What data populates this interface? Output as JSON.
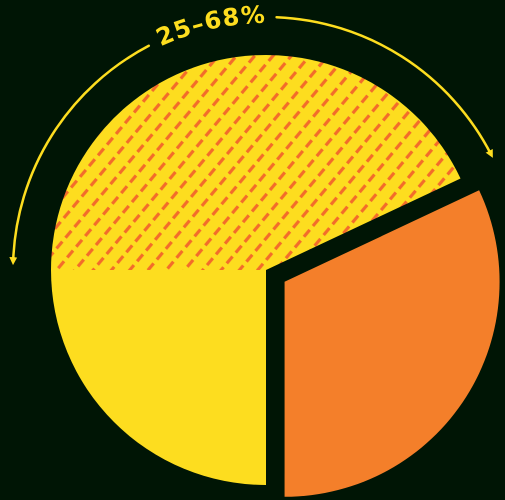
{
  "colors": {
    "background": "#001505",
    "yellow": "#FDDD1F",
    "orange": "#F47F2A",
    "hatch": "#F36C2A",
    "arrow": "#FDDD1F"
  },
  "chart_data": {
    "type": "pie",
    "title": "",
    "slices": [
      {
        "label": "",
        "value": 25,
        "color": "#FDDD1F",
        "pattern": "solid"
      },
      {
        "label": "",
        "value": 43,
        "color": "#FDDD1F",
        "pattern": "hatched"
      },
      {
        "label": "",
        "value": 32,
        "color": "#F47F2A",
        "pattern": "solid",
        "exploded": true
      }
    ],
    "annotations": [
      {
        "text": "25–68%",
        "spans_slice": 1,
        "style": "curved-arrow-both-ends"
      }
    ],
    "legend": "none"
  }
}
